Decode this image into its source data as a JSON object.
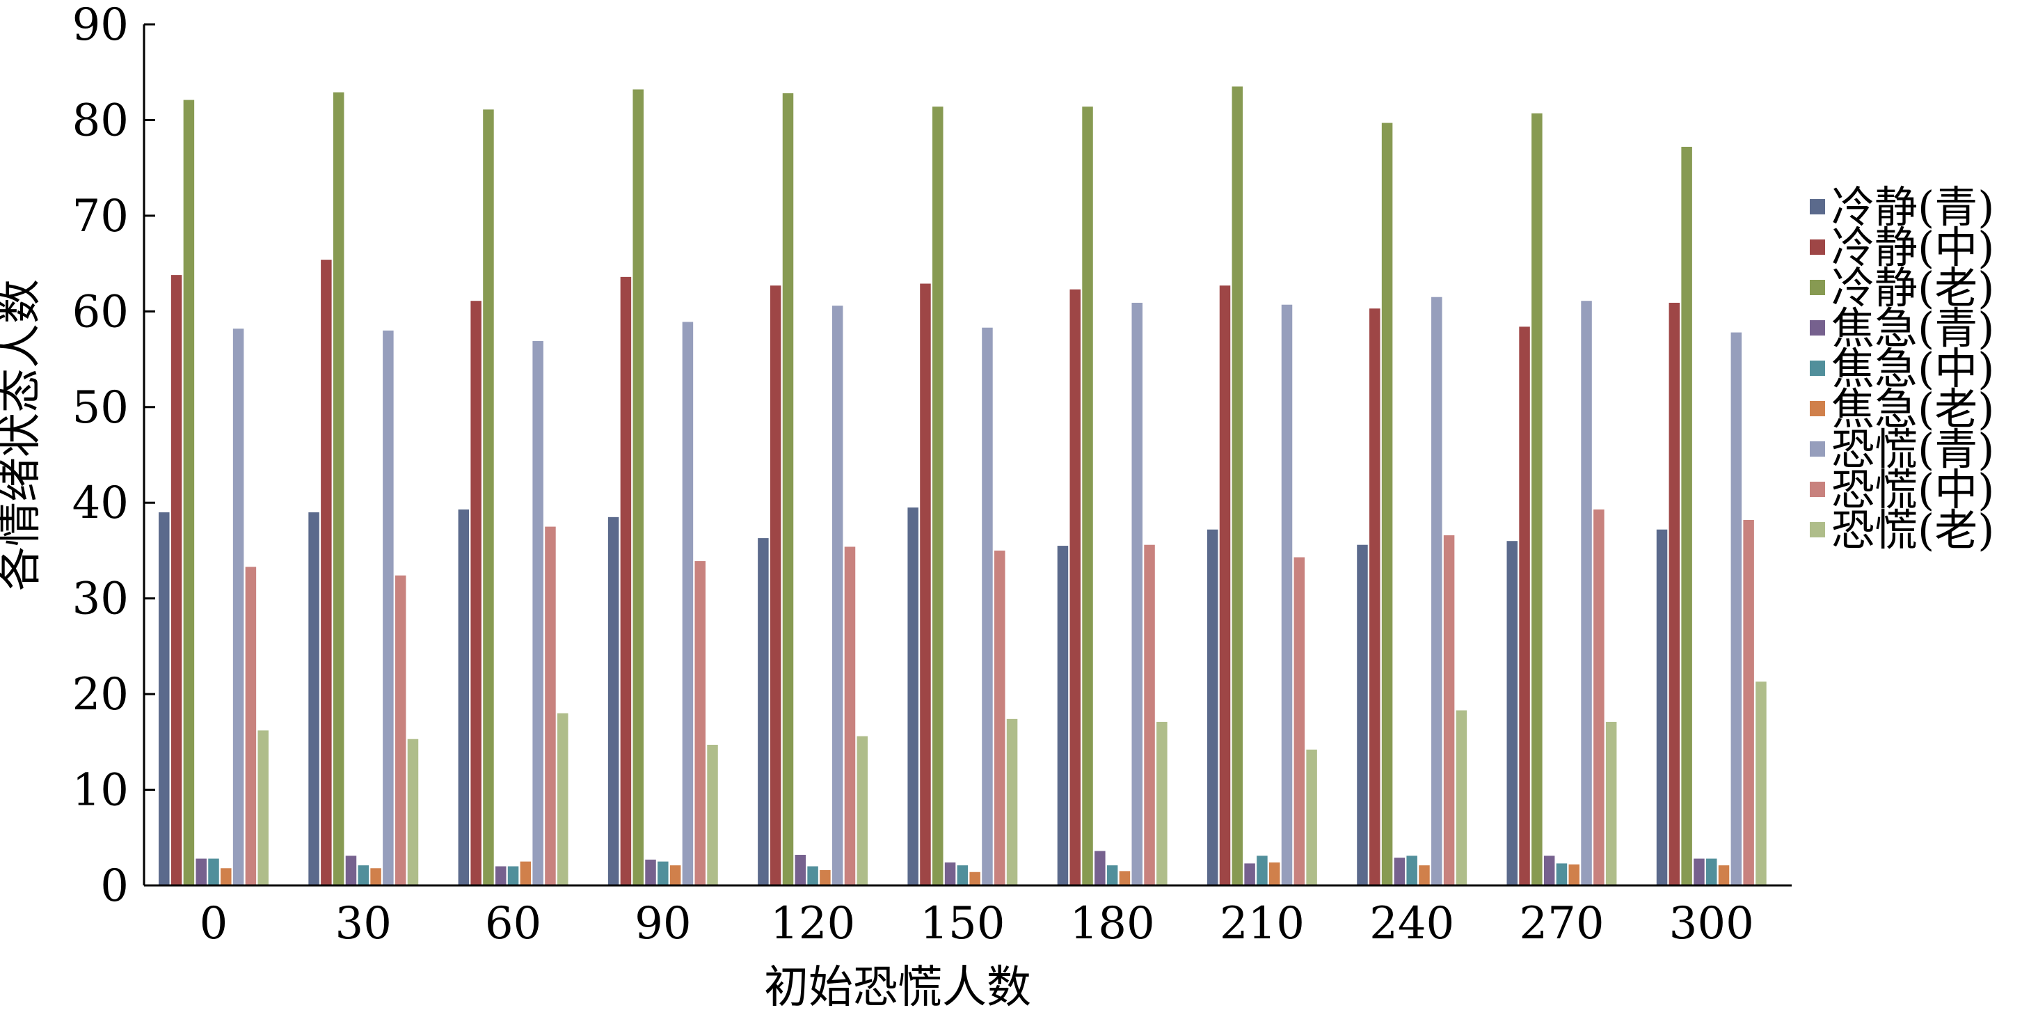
{
  "chart_data": {
    "type": "bar",
    "xlabel": "初始恐慌人数",
    "ylabel": "各情绪状态人数",
    "ylim": [
      0,
      90
    ],
    "yticks": [
      0,
      10,
      20,
      30,
      40,
      50,
      60,
      70,
      80,
      90
    ],
    "grid": false,
    "legend_position": "right",
    "categories": [
      "0",
      "30",
      "60",
      "90",
      "120",
      "150",
      "180",
      "210",
      "240",
      "270",
      "300"
    ],
    "series": [
      {
        "name": "冷静(青)",
        "color": "#5b6a8c",
        "values": [
          39.0,
          39.0,
          39.3,
          38.5,
          36.3,
          39.5,
          35.5,
          37.2,
          35.6,
          36.0,
          37.2
        ]
      },
      {
        "name": "冷静(中)",
        "color": "#9e4646",
        "values": [
          63.8,
          65.4,
          61.1,
          63.6,
          62.7,
          62.9,
          62.3,
          62.7,
          60.3,
          58.4,
          60.9
        ]
      },
      {
        "name": "冷静(老)",
        "color": "#879a52",
        "values": [
          82.1,
          82.9,
          81.1,
          83.2,
          82.8,
          81.4,
          81.4,
          83.5,
          79.7,
          80.7,
          77.2
        ]
      },
      {
        "name": "焦急(青)",
        "color": "#76618e",
        "values": [
          2.8,
          3.1,
          2.0,
          2.7,
          3.2,
          2.4,
          3.6,
          2.3,
          2.9,
          3.1,
          2.8
        ]
      },
      {
        "name": "焦急(中)",
        "color": "#518f9b",
        "values": [
          2.8,
          2.1,
          2.0,
          2.5,
          2.0,
          2.1,
          2.1,
          3.1,
          3.1,
          2.3,
          2.8
        ]
      },
      {
        "name": "焦急(老)",
        "color": "#d0804b",
        "values": [
          1.8,
          1.8,
          2.5,
          2.1,
          1.6,
          1.4,
          1.5,
          2.4,
          2.1,
          2.2,
          2.1
        ]
      },
      {
        "name": "恐慌(青)",
        "color": "#969ebc",
        "values": [
          58.2,
          58.0,
          56.9,
          58.9,
          60.6,
          58.3,
          60.9,
          60.7,
          61.5,
          61.1,
          57.8
        ]
      },
      {
        "name": "恐慌(中)",
        "color": "#c8827e",
        "values": [
          33.3,
          32.4,
          37.5,
          33.9,
          35.4,
          35.0,
          35.6,
          34.3,
          36.6,
          39.3,
          38.2
        ]
      },
      {
        "name": "恐慌(老)",
        "color": "#afbd8a",
        "values": [
          16.2,
          15.3,
          18.0,
          14.7,
          15.6,
          17.4,
          17.1,
          14.2,
          18.3,
          17.1,
          21.3
        ]
      }
    ]
  }
}
